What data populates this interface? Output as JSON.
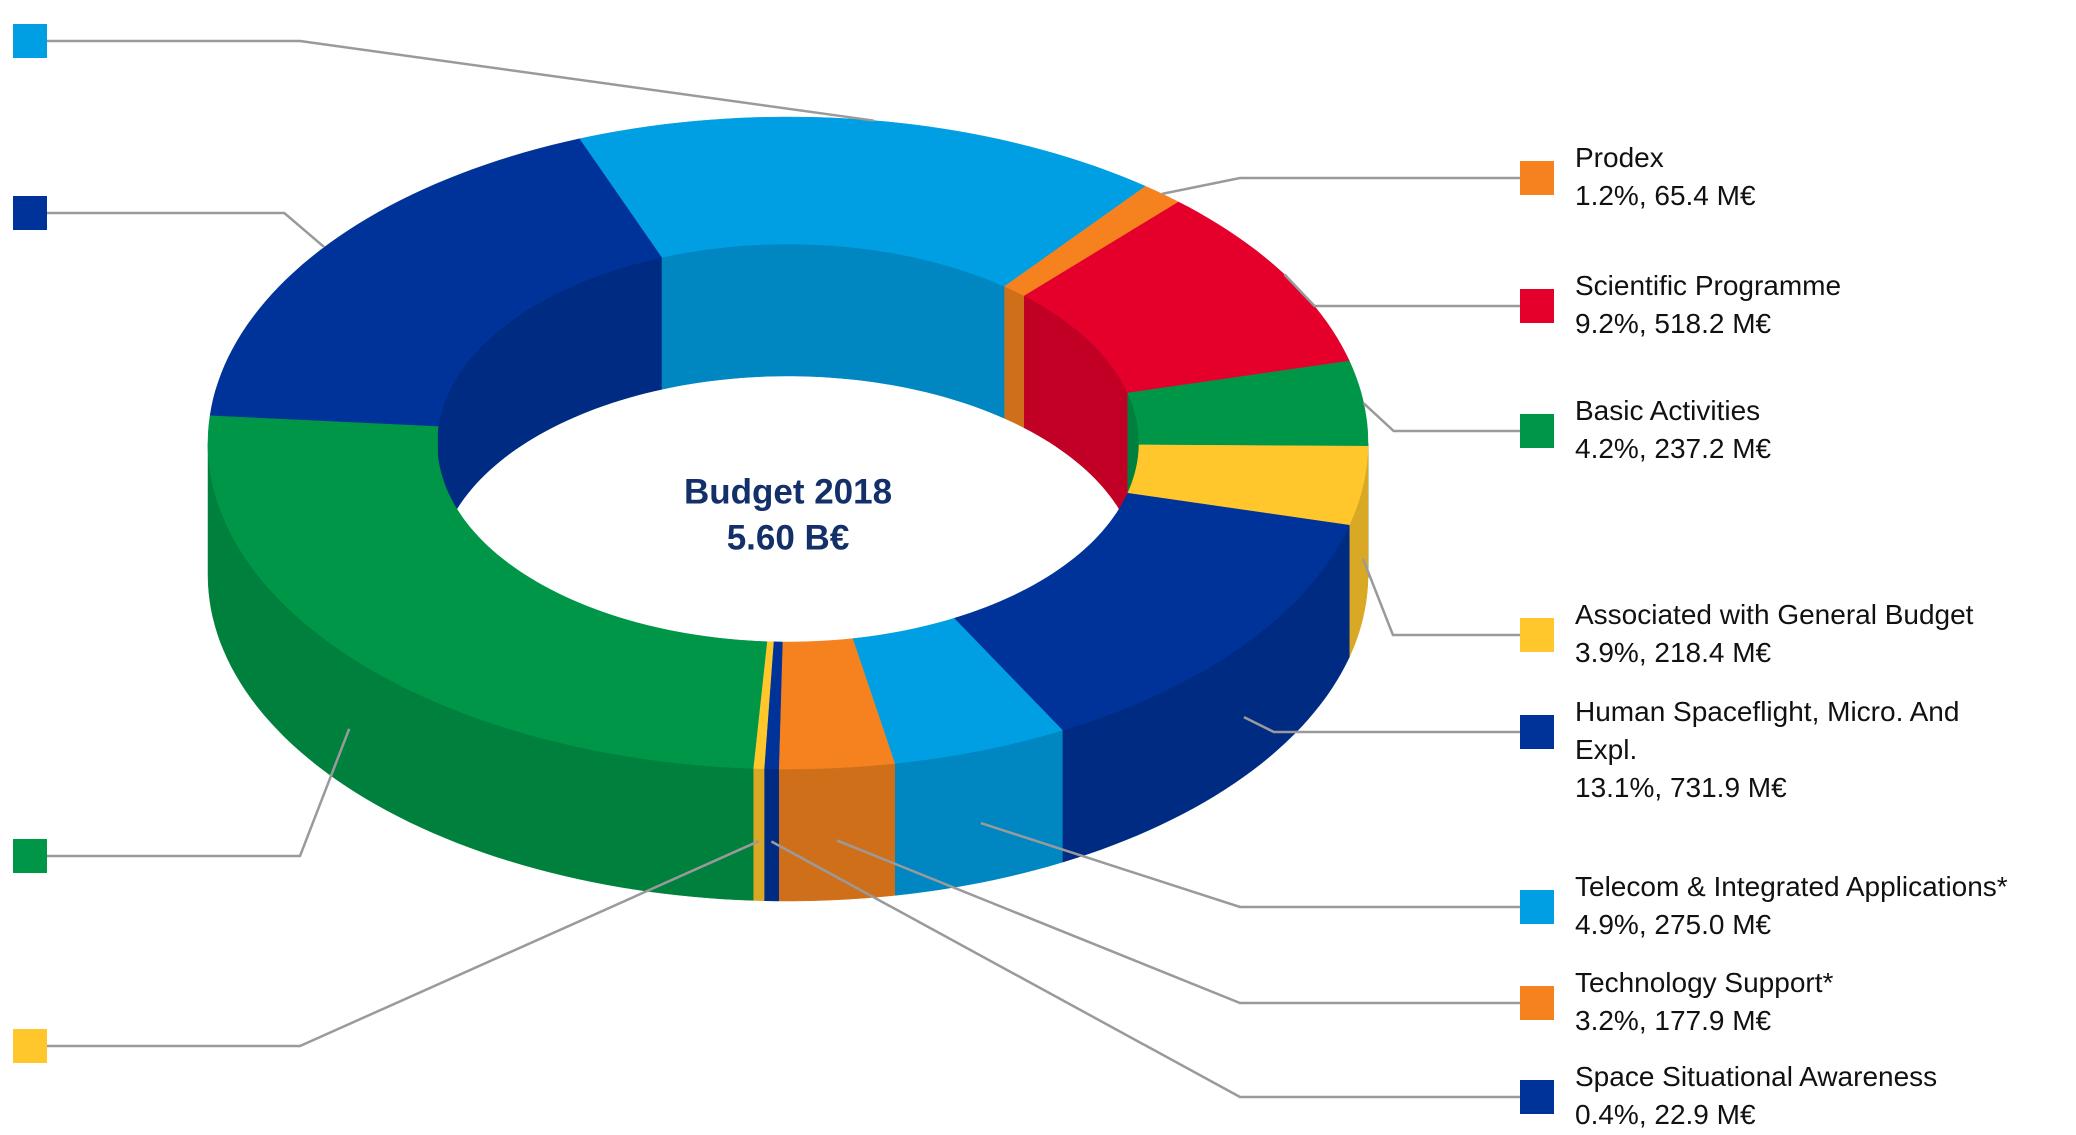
{
  "chart_data": {
    "type": "pie",
    "annotations": [
      "Budget 2018",
      "5.60 B€"
    ],
    "categories": [
      "Prodex",
      "Scientific Programme",
      "Basic Activities",
      "Associated with General Budget",
      "Human Spaceflight, Micro. And Expl.",
      "Telecom & Integrated Applications*",
      "Technology Support*",
      "Space Situational Awareness",
      null,
      null,
      null,
      null
    ],
    "values": [
      1.2,
      9.2,
      4.2,
      3.9,
      13.1,
      4.9,
      3.2,
      0.4,
      0.3,
      25.4,
      17.8,
      16.4
    ],
    "value_labels": [
      "1.2%, 65.4 M€",
      "9.2%, 518.2 M€",
      "4.2%, 237.2 M€",
      "3.9%, 218.4 M€",
      "13.1%, 731.9 M€",
      "4.9%, 275.0 M€",
      "3.2%, 177.9 M€",
      "0.4%, 22.9 M€",
      null,
      null,
      null,
      null
    ],
    "colors": [
      "#f5821f",
      "#e4002b",
      "#009648",
      "#ffc72c",
      "#003399",
      "#009fe3",
      "#f5821f",
      "#003399",
      "#ffc72c",
      "#009648",
      "#003399",
      "#009fe3"
    ]
  }
}
